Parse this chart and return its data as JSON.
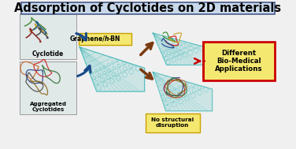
{
  "title": "Adsorption of Cyclotides on 2D materials",
  "title_box_facecolor": "#c8d8ea",
  "title_box_edgecolor": "#4a5a8a",
  "title_fontsize": 10.5,
  "graphene_label": "Graphene/",
  "graphene_h": "h",
  "graphene_bn": "-BN",
  "graphene_box_facecolor": "#f5e870",
  "graphene_box_edgecolor": "#c8a000",
  "cyclotide_label": "Cyclotide",
  "aggregated_label": "Aggregated\nCyclotides",
  "left_box_facecolor": "#e0e8e8",
  "left_box_edgecolor": "#909090",
  "no_disruption_label": "No structural\ndisruption",
  "no_disruption_box_facecolor": "#f5e870",
  "no_disruption_box_edgecolor": "#c8a000",
  "bio_label": "Different\nBio-Medical\nApplications",
  "bio_box_facecolor": "#f5e870",
  "bio_box_edgecolor": "#cc0000",
  "blue_arrow_color": "#1a4a8a",
  "brown_arrow_color": "#7a3a10",
  "red_color": "#cc0000",
  "graphene_color": "#40b8b8",
  "bg_color": "#f0f0f0",
  "fig_width": 3.76,
  "fig_height": 1.89,
  "dpi": 100
}
